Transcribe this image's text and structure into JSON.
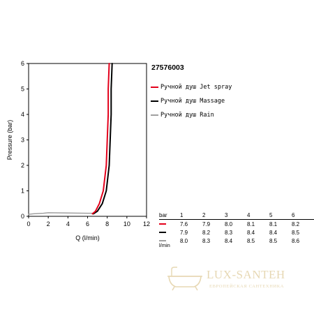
{
  "chart_data": {
    "type": "line",
    "title": "27576003",
    "xlabel": "Q (l/min)",
    "ylabel": "Pressure (bar)",
    "xlim": [
      0,
      12
    ],
    "ylim": [
      0,
      6
    ],
    "x_ticks": [
      "0",
      "2",
      "4",
      "6",
      "8",
      "10",
      "12"
    ],
    "y_ticks": [
      "0",
      "1",
      "2",
      "3",
      "4",
      "5",
      "6"
    ],
    "grid": false,
    "legend_position": "right",
    "series": [
      {
        "name": "Ручной душ Jet spray",
        "color": "#e3001b",
        "x": [
          6.5,
          6.8,
          7.2,
          7.6,
          7.9,
          8.0,
          8.1,
          8.1,
          8.2
        ],
        "y": [
          0.1,
          0.2,
          0.5,
          1,
          2,
          3,
          4,
          5,
          6
        ]
      },
      {
        "name": "Ручной душ Massage",
        "color": "#000000",
        "x": [
          6.6,
          7.0,
          7.5,
          7.9,
          8.2,
          8.3,
          8.4,
          8.4,
          8.5
        ],
        "y": [
          0.1,
          0.2,
          0.5,
          1,
          2,
          3,
          4,
          5,
          6
        ]
      },
      {
        "name": "Ручной душ Rain",
        "color": "#a0a0a0",
        "x": [
          0,
          0.5,
          1.5,
          2.0,
          4.0,
          6.0,
          6.6
        ],
        "y": [
          0.08,
          0.1,
          0.12,
          0.14,
          0.13,
          0.12,
          0.12
        ]
      }
    ],
    "table": {
      "header_label": "bar",
      "columns": [
        "1",
        "2",
        "3",
        "4",
        "5",
        "6"
      ],
      "rows": [
        {
          "color": "#e3001b",
          "values": [
            "7.6",
            "7.9",
            "8.0",
            "8.1",
            "8.1",
            "8.2"
          ]
        },
        {
          "color": "#000000",
          "values": [
            "7.9",
            "8.2",
            "8.3",
            "8.4",
            "8.4",
            "8.5"
          ]
        },
        {
          "color": "#a0a0a0",
          "values": [
            "8.0",
            "8.3",
            "8.4",
            "8.5",
            "8.5",
            "8.6"
          ]
        }
      ],
      "unit_label": "l/min"
    }
  },
  "watermark": {
    "title": "LUX-SANTEH",
    "subtitle": "ЕВРОПЕЙСКАЯ САНТЕХНИКА",
    "color": "#e7d8b4"
  }
}
